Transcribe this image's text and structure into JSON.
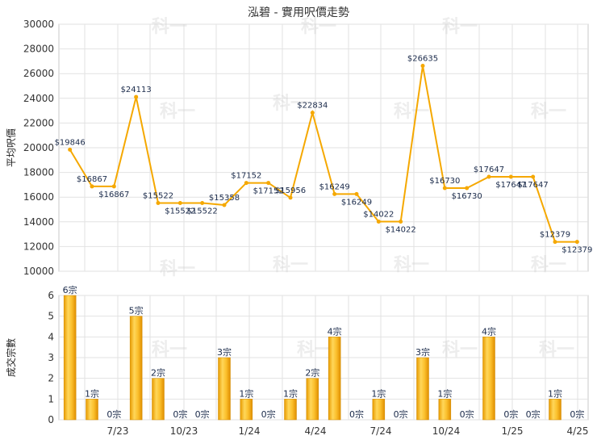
{
  "chart_data": [
    {
      "type": "line",
      "title": "泓碧 - 實用呎價走勢",
      "ylabel": "平均呎價",
      "ylim": [
        10000,
        30000
      ],
      "yticks": [
        10000,
        12000,
        14000,
        16000,
        18000,
        20000,
        22000,
        24000,
        26000,
        28000,
        30000
      ],
      "x_tick_labels": [
        "7/23",
        "10/23",
        "1/24",
        "4/24",
        "7/24",
        "10/24",
        "1/25",
        "4/25"
      ],
      "series": [
        {
          "values": [
            19846,
            16867,
            16867,
            24113,
            15522,
            15522,
            15522,
            15358,
            17152,
            17152,
            15956,
            22834,
            16249,
            16249,
            14022,
            14022,
            26635,
            16730,
            16730,
            17647,
            17647,
            17647,
            12379,
            12379
          ],
          "labels": [
            "$19846",
            "$16867",
            "$16867",
            "$24113",
            "$15522",
            "$15522",
            "$15522",
            "$15358",
            "$17152",
            "$17152",
            "$15956",
            "$22834",
            "$16249",
            "$16249",
            "$14022",
            "$14022",
            "$26635",
            "$16730",
            "$16730",
            "$17647",
            "$17647",
            "$17647",
            "$12379",
            "$12379"
          ]
        }
      ],
      "grid": true,
      "color": "#f5a800"
    },
    {
      "type": "bar",
      "ylabel": "成交宗數",
      "ylim": [
        0,
        6
      ],
      "yticks": [
        0,
        1,
        2,
        3,
        4,
        5,
        6
      ],
      "x_tick_labels": [
        "7/23",
        "10/23",
        "1/24",
        "4/24",
        "7/24",
        "10/24",
        "1/25",
        "4/25"
      ],
      "values": [
        6,
        1,
        0,
        5,
        2,
        0,
        0,
        3,
        1,
        0,
        1,
        2,
        4,
        0,
        1,
        0,
        3,
        1,
        0,
        4,
        0,
        0,
        1,
        0
      ],
      "labels": [
        "6宗",
        "1宗",
        "0宗",
        "5宗",
        "2宗",
        "0宗",
        "0宗",
        "3宗",
        "1宗",
        "0宗",
        "1宗",
        "2宗",
        "4宗",
        "0宗",
        "1宗",
        "0宗",
        "3宗",
        "1宗",
        "0宗",
        "4宗",
        "0宗",
        "0宗",
        "1宗",
        "0宗"
      ],
      "grid": true,
      "color": "#f5a800"
    }
  ],
  "watermark": "科一"
}
